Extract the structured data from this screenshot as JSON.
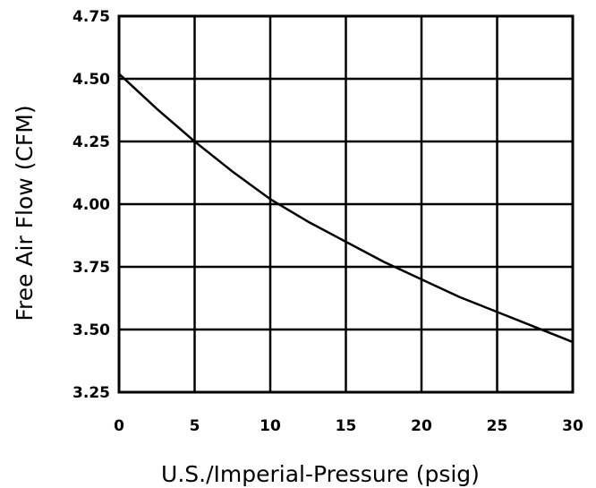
{
  "chart_data": {
    "type": "line",
    "title": "",
    "xlabel": "U.S./Imperial-Pressure (psig)",
    "ylabel": "Free Air Flow (CFM)",
    "xlim": [
      0,
      30
    ],
    "ylim": [
      3.25,
      4.75
    ],
    "xticks": [
      "0",
      "5",
      "10",
      "15",
      "20",
      "25",
      "30"
    ],
    "yticks": [
      "3.25",
      "3.50",
      "3.75",
      "4.00",
      "4.25",
      "4.50",
      "4.75"
    ],
    "grid": true,
    "legend": "none",
    "series": [
      {
        "x": [
          0,
          2.5,
          5,
          7.5,
          10,
          12.5,
          15,
          17.5,
          20,
          22.5,
          25,
          27.5,
          30
        ],
        "y": [
          4.52,
          4.38,
          4.25,
          4.13,
          4.02,
          3.93,
          3.85,
          3.77,
          3.7,
          3.63,
          3.57,
          3.51,
          3.45
        ]
      }
    ],
    "colors": {
      "line": "#000000",
      "grid": "#000000",
      "background": "#ffffff"
    }
  }
}
